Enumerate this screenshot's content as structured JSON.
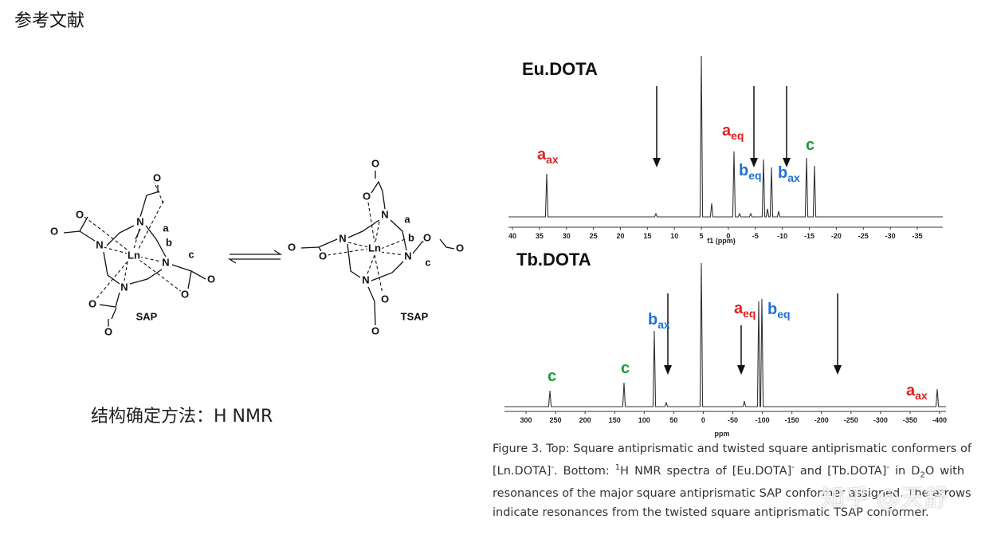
{
  "header": {
    "title": "参考文献"
  },
  "method": "结构确定方法：H NMR",
  "structures": {
    "sap": {
      "label": "SAP",
      "atoms": [
        "O",
        "O",
        "O",
        "N",
        "a",
        "b",
        "N",
        "Ln",
        "N",
        "c",
        "O",
        "O",
        "N",
        "O",
        "O"
      ]
    },
    "tsap": {
      "label": "TSAP",
      "atoms": [
        "O",
        "O",
        "N",
        "a",
        "N",
        "b",
        "O",
        "O",
        "O",
        "O",
        "Ln",
        "N",
        "c",
        "N",
        "O",
        "O"
      ]
    }
  },
  "spectra": [
    {
      "title": "Eu.DOTA",
      "ticks": [
        "40",
        "35",
        "30",
        "25",
        "20",
        "15",
        "10",
        "5",
        "0",
        "-5",
        "-10",
        "-15",
        "-20",
        "-25",
        "-30",
        "-35"
      ],
      "xlabel": "f1 (ppm)",
      "annotations": [
        {
          "main": "a",
          "sub": "ax"
        },
        {
          "main": "a",
          "sub": "eq"
        },
        {
          "main": "b",
          "sub": "eq"
        },
        {
          "main": "b",
          "sub": "ax"
        },
        {
          "main": "c"
        }
      ]
    },
    {
      "title": "Tb.DOTA",
      "ticks": [
        "300",
        "250",
        "200",
        "150",
        "100",
        "50",
        "0",
        "-50",
        "-100",
        "-150",
        "-200",
        "-250",
        "-300",
        "-350",
        "-400"
      ],
      "xlabel": "ppm",
      "annotations": [
        {
          "main": "c"
        },
        {
          "main": "c"
        },
        {
          "main": "b",
          "sub": "ax"
        },
        {
          "main": "a",
          "sub": "eq"
        },
        {
          "main": "b",
          "sub": "eq"
        },
        {
          "main": "a",
          "sub": "ax"
        }
      ]
    }
  ],
  "caption": [
    [
      {
        "text": "Figure 3. Top: Square antiprismatic and twisted square antiprismatic conformers of"
      }
    ],
    [
      {
        "text": "[Ln.DOTA]"
      },
      {
        "text": "-",
        "pos": "sup"
      },
      {
        "text": ". Bottom: "
      },
      {
        "text": "1",
        "pos": "sup"
      },
      {
        "text": "H NMR spectra of [Eu.DOTA]"
      },
      {
        "text": "-",
        "pos": "sup"
      },
      {
        "text": " and [Tb.DOTA]"
      },
      {
        "text": "-",
        "pos": "sup"
      },
      {
        "text": " in D"
      },
      {
        "text": "2",
        "pos": "sub"
      },
      {
        "text": "O with"
      }
    ],
    [
      {
        "text": "resonances of the major square antiprismatic SAP conformer assigned. The arrows"
      }
    ],
    [
      {
        "text": "indicate resonances from the twisted square antiprismatic TSAP conformer."
      }
    ]
  ],
  "watermark": "知乎 @天舒"
}
